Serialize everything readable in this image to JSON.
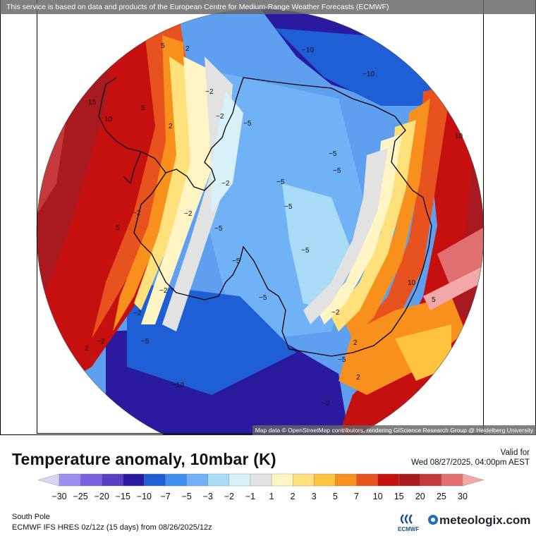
{
  "attribution_top": "This service is based on data and products of the European Centre for Medium-Range Weather Forecasts (ECMWF)",
  "attribution_bottom": "Map data © OpenStreetMap contributors, rendering GIScience Research Group @ Heidelberg University",
  "title": "Temperature anomaly, 10mbar (K)",
  "valid_label": "Valid for",
  "valid_time": "Wed 08/27/2025, 04:00pm AEST",
  "region": "South Pole",
  "run_info": "ECMWF IFS HRES 0z/12z (15 days) from 08/26/2025/12z",
  "ecmwf_label": "ECMWF",
  "brand": "meteologix.com",
  "colorbar": {
    "ticks": [
      "−30",
      "−25",
      "−20",
      "−15",
      "−10",
      "−7",
      "−5",
      "−3",
      "−2",
      "−1",
      "1",
      "2",
      "3",
      "5",
      "7",
      "10",
      "15",
      "20",
      "25",
      "30"
    ],
    "colors": [
      "#d9d4f5",
      "#9a8ef0",
      "#7a62e0",
      "#5a3ec4",
      "#2a1aa0",
      "#1e5fd6",
      "#3f8ff0",
      "#70b2f5",
      "#a8dcf6",
      "#d8f0f8",
      "#e2e2e2",
      "#fff5c4",
      "#ffe07a",
      "#ffc23e",
      "#f7901c",
      "#e8521e",
      "#c61010",
      "#a81a20",
      "#c43a3a",
      "#e07070",
      "#f2a8a8"
    ]
  },
  "contour_labels": [
    "15",
    "10",
    "5",
    "5",
    "2",
    "2",
    "−2",
    "−2",
    "−2",
    "−2",
    "−2",
    "5",
    "2",
    "−2",
    "−5",
    "−5",
    "−5",
    "−5",
    "−5",
    "−5",
    "−5",
    "−5",
    "−5",
    "−10",
    "−10",
    "−10",
    "10",
    "10",
    "5",
    "2",
    "2",
    "−2",
    "−2",
    "−2",
    "−2",
    "−5",
    "−5"
  ]
}
